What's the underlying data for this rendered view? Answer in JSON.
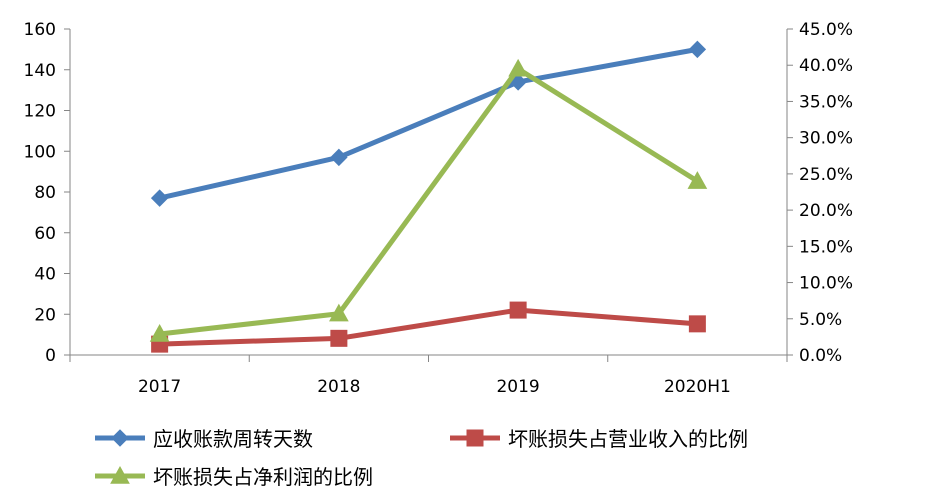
{
  "chart_data": {
    "type": "line",
    "categories": [
      "2017",
      "2018",
      "2019",
      "2020H1"
    ],
    "series": [
      {
        "name": "应收账款周转天数",
        "axis": "left",
        "marker": "diamond",
        "color": "#4A7EBB",
        "values": [
          77,
          97,
          134,
          150
        ]
      },
      {
        "name": "坏账损失占营业收入的比例",
        "axis": "right",
        "marker": "square",
        "color": "#BE4B48",
        "values": [
          0.015,
          0.023,
          0.062,
          0.043
        ]
      },
      {
        "name": "坏账损失占净利润的比例",
        "axis": "right",
        "marker": "triangle",
        "color": "#98B954",
        "values": [
          0.029,
          0.057,
          0.395,
          0.24
        ]
      }
    ],
    "y_left": {
      "range": [
        0,
        160
      ],
      "ticks": [
        0,
        20,
        40,
        60,
        80,
        100,
        120,
        140,
        160
      ],
      "tick_labels": [
        "0",
        "20",
        "40",
        "60",
        "80",
        "100",
        "120",
        "140",
        "160"
      ]
    },
    "y_right": {
      "range": [
        0,
        0.45
      ],
      "ticks": [
        0,
        0.05,
        0.1,
        0.15,
        0.2,
        0.25,
        0.3,
        0.35,
        0.4,
        0.45
      ],
      "tick_labels": [
        "0.0%",
        "5.0%",
        "10.0%",
        "15.0%",
        "20.0%",
        "25.0%",
        "30.0%",
        "35.0%",
        "40.0%",
        "45.0%"
      ]
    },
    "grid": false,
    "legend_position": "bottom"
  }
}
